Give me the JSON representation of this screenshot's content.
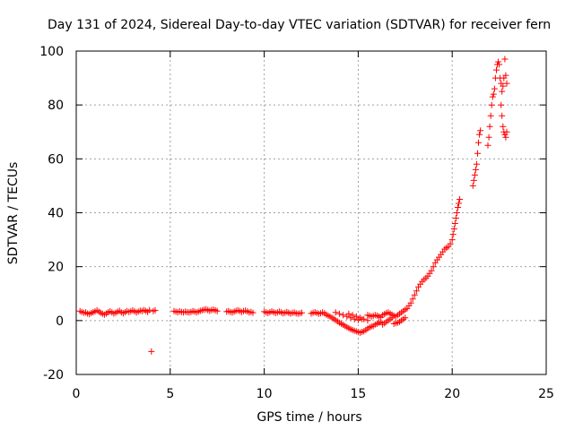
{
  "chart_data": {
    "type": "scatter",
    "title": "Day 131 of 2024, Sidereal Day-to-day VTEC variation (SDTVAR) for receiver fern",
    "xlabel": "GPS time / hours",
    "ylabel": "SDTVAR / TECUs",
    "xlim": [
      0,
      25
    ],
    "ylim": [
      -20,
      100
    ],
    "xticks": [
      0,
      5,
      10,
      15,
      20,
      25
    ],
    "yticks": [
      -20,
      0,
      20,
      40,
      60,
      80,
      100
    ],
    "grid": true,
    "marker": "+",
    "colors": {
      "series": "#ff0000",
      "axis": "#000000",
      "grid": "#a0a0a0"
    },
    "series": [
      {
        "name": "SDTVAR",
        "points": [
          [
            0.2,
            3.5
          ],
          [
            0.3,
            3.2
          ],
          [
            0.4,
            2.9
          ],
          [
            0.5,
            3.0
          ],
          [
            0.6,
            2.6
          ],
          [
            0.7,
            2.4
          ],
          [
            0.8,
            2.8
          ],
          [
            0.9,
            3.1
          ],
          [
            1.0,
            3.4
          ],
          [
            1.1,
            3.8
          ],
          [
            1.2,
            3.3
          ],
          [
            1.3,
            2.9
          ],
          [
            1.4,
            2.5
          ],
          [
            1.5,
            2.2
          ],
          [
            1.6,
            2.6
          ],
          [
            1.7,
            3.1
          ],
          [
            1.8,
            3.4
          ],
          [
            1.9,
            3.0
          ],
          [
            2.0,
            2.6
          ],
          [
            2.1,
            2.9
          ],
          [
            2.2,
            3.3
          ],
          [
            2.3,
            3.6
          ],
          [
            2.4,
            3.0
          ],
          [
            2.5,
            2.7
          ],
          [
            2.6,
            3.1
          ],
          [
            2.7,
            3.5
          ],
          [
            2.8,
            3.2
          ],
          [
            2.9,
            3.4
          ],
          [
            3.0,
            3.8
          ],
          [
            3.1,
            3.4
          ],
          [
            3.2,
            3.0
          ],
          [
            3.3,
            3.3
          ],
          [
            3.4,
            3.7
          ],
          [
            3.5,
            3.5
          ],
          [
            3.6,
            3.9
          ],
          [
            3.7,
            3.6
          ],
          [
            3.8,
            3.2
          ],
          [
            3.9,
            3.9
          ],
          [
            4.0,
            -11.5
          ],
          [
            4.1,
            3.5
          ],
          [
            4.2,
            3.8
          ],
          [
            5.2,
            3.5
          ],
          [
            5.3,
            3.3
          ],
          [
            5.4,
            3.1
          ],
          [
            5.5,
            3.4
          ],
          [
            5.6,
            3.2
          ],
          [
            5.7,
            3.0
          ],
          [
            5.8,
            3.3
          ],
          [
            5.9,
            3.1
          ],
          [
            6.0,
            3.0
          ],
          [
            6.1,
            3.2
          ],
          [
            6.2,
            3.5
          ],
          [
            6.3,
            3.3
          ],
          [
            6.4,
            3.0
          ],
          [
            6.5,
            3.3
          ],
          [
            6.6,
            3.6
          ],
          [
            6.7,
            3.8
          ],
          [
            6.8,
            4.0
          ],
          [
            6.9,
            4.2
          ],
          [
            7.0,
            3.9
          ],
          [
            7.1,
            3.6
          ],
          [
            7.2,
            3.9
          ],
          [
            7.3,
            4.1
          ],
          [
            7.4,
            3.8
          ],
          [
            7.5,
            3.5
          ],
          [
            8.0,
            3.3
          ],
          [
            8.1,
            3.5
          ],
          [
            8.2,
            3.2
          ],
          [
            8.3,
            3.0
          ],
          [
            8.4,
            3.3
          ],
          [
            8.5,
            3.6
          ],
          [
            8.6,
            3.8
          ],
          [
            8.7,
            3.5
          ],
          [
            8.8,
            3.2
          ],
          [
            8.9,
            3.5
          ],
          [
            9.0,
            3.7
          ],
          [
            9.1,
            3.4
          ],
          [
            9.2,
            3.0
          ],
          [
            9.3,
            3.2
          ],
          [
            9.4,
            2.9
          ],
          [
            10.0,
            3.3
          ],
          [
            10.1,
            3.0
          ],
          [
            10.2,
            2.8
          ],
          [
            10.3,
            3.1
          ],
          [
            10.4,
            3.4
          ],
          [
            10.5,
            3.1
          ],
          [
            10.6,
            2.8
          ],
          [
            10.7,
            3.0
          ],
          [
            10.8,
            3.3
          ],
          [
            10.9,
            3.0
          ],
          [
            11.0,
            2.7
          ],
          [
            11.1,
            2.9
          ],
          [
            11.2,
            3.2
          ],
          [
            11.3,
            2.9
          ],
          [
            11.4,
            2.6
          ],
          [
            11.5,
            2.8
          ],
          [
            11.6,
            3.0
          ],
          [
            11.7,
            2.7
          ],
          [
            11.8,
            2.5
          ],
          [
            11.9,
            2.7
          ],
          [
            12.0,
            2.9
          ],
          [
            12.5,
            2.6
          ],
          [
            12.6,
            2.9
          ],
          [
            12.7,
            3.1
          ],
          [
            12.8,
            2.8
          ],
          [
            12.9,
            2.5
          ],
          [
            13.0,
            2.7
          ],
          [
            13.1,
            3.0
          ],
          [
            13.2,
            2.7
          ],
          [
            13.3,
            2.2
          ],
          [
            13.4,
            1.8
          ],
          [
            13.5,
            1.5
          ],
          [
            13.6,
            1.0
          ],
          [
            13.7,
            0.6
          ],
          [
            13.8,
            0.2
          ],
          [
            13.9,
            -0.3
          ],
          [
            14.0,
            -0.8
          ],
          [
            14.1,
            -1.2
          ],
          [
            14.2,
            -1.6
          ],
          [
            14.3,
            -2.0
          ],
          [
            14.4,
            -2.4
          ],
          [
            14.5,
            -2.8
          ],
          [
            14.6,
            -3.2
          ],
          [
            14.7,
            -3.5
          ],
          [
            14.8,
            -3.8
          ],
          [
            14.9,
            -4.0
          ],
          [
            15.0,
            -4.3
          ],
          [
            15.1,
            -4.5
          ],
          [
            15.2,
            -4.2
          ],
          [
            15.3,
            -4.0
          ],
          [
            13.8,
            3.0
          ],
          [
            14.0,
            2.5
          ],
          [
            14.2,
            2.0
          ],
          [
            14.4,
            1.5
          ],
          [
            14.6,
            1.0
          ],
          [
            14.8,
            0.5
          ],
          [
            15.0,
            0.2
          ],
          [
            15.2,
            0.5
          ],
          [
            14.5,
            2.5
          ],
          [
            14.7,
            2.0
          ],
          [
            14.9,
            1.5
          ],
          [
            15.1,
            1.0
          ],
          [
            15.3,
            0.5
          ],
          [
            15.5,
            0.0
          ],
          [
            15.4,
            -3.5
          ],
          [
            15.5,
            -3.0
          ],
          [
            15.6,
            -2.5
          ],
          [
            15.7,
            -2.2
          ],
          [
            15.8,
            -2.0
          ],
          [
            15.9,
            -1.5
          ],
          [
            16.0,
            -1.2
          ],
          [
            15.5,
            2.0
          ],
          [
            15.6,
            1.8
          ],
          [
            15.7,
            1.5
          ],
          [
            15.8,
            1.7
          ],
          [
            15.9,
            2.0
          ],
          [
            16.0,
            1.8
          ],
          [
            16.1,
            1.5
          ],
          [
            16.2,
            1.2
          ],
          [
            16.1,
            -0.8
          ],
          [
            16.2,
            -0.5
          ],
          [
            16.3,
            -1.5
          ],
          [
            16.4,
            -1.0
          ],
          [
            16.5,
            -0.5
          ],
          [
            16.6,
            0.0
          ],
          [
            16.7,
            0.5
          ],
          [
            16.8,
            1.0
          ],
          [
            16.3,
            2.0
          ],
          [
            16.4,
            2.4
          ],
          [
            16.5,
            2.8
          ],
          [
            16.6,
            3.0
          ],
          [
            16.7,
            2.6
          ],
          [
            16.8,
            2.2
          ],
          [
            16.9,
            1.8
          ],
          [
            17.0,
            1.5
          ],
          [
            16.9,
            -1.2
          ],
          [
            17.0,
            -1.0
          ],
          [
            17.1,
            -0.8
          ],
          [
            17.2,
            -0.5
          ],
          [
            17.3,
            0.0
          ],
          [
            17.4,
            0.5
          ],
          [
            17.5,
            1.0
          ],
          [
            17.1,
            2.0
          ],
          [
            17.2,
            2.5
          ],
          [
            17.3,
            3.0
          ],
          [
            17.4,
            3.5
          ],
          [
            17.5,
            4.0
          ],
          [
            17.6,
            4.5
          ],
          [
            17.7,
            5.5
          ],
          [
            17.8,
            6.5
          ],
          [
            17.9,
            8.0
          ],
          [
            18.0,
            9.5
          ],
          [
            18.1,
            11.0
          ],
          [
            18.2,
            12.5
          ],
          [
            18.3,
            13.5
          ],
          [
            18.4,
            14.5
          ],
          [
            18.5,
            15.2
          ],
          [
            18.6,
            15.8
          ],
          [
            18.7,
            16.5
          ],
          [
            18.8,
            17.5
          ],
          [
            18.9,
            18.5
          ],
          [
            19.0,
            20.0
          ],
          [
            19.1,
            21.5
          ],
          [
            19.2,
            22.5
          ],
          [
            19.3,
            23.5
          ],
          [
            19.4,
            24.5
          ],
          [
            19.5,
            25.5
          ],
          [
            19.6,
            26.5
          ],
          [
            19.7,
            27.0
          ],
          [
            19.8,
            27.5
          ],
          [
            19.9,
            28.5
          ],
          [
            20.0,
            30.0
          ],
          [
            20.05,
            32.0
          ],
          [
            20.1,
            34.0
          ],
          [
            20.15,
            36.0
          ],
          [
            20.2,
            38.0
          ],
          [
            20.25,
            40.0
          ],
          [
            20.3,
            42.0
          ],
          [
            20.35,
            43.5
          ],
          [
            20.4,
            45.0
          ],
          [
            21.1,
            50.0
          ],
          [
            21.15,
            52.0
          ],
          [
            21.2,
            54.0
          ],
          [
            21.25,
            56.0
          ],
          [
            21.3,
            58.0
          ],
          [
            21.35,
            62.0
          ],
          [
            21.4,
            66.0
          ],
          [
            21.45,
            69.0
          ],
          [
            21.5,
            70.5
          ],
          [
            21.9,
            65.0
          ],
          [
            21.95,
            68.0
          ],
          [
            22.0,
            72.0
          ],
          [
            22.05,
            76.0
          ],
          [
            22.1,
            80.0
          ],
          [
            22.15,
            83.0
          ],
          [
            22.2,
            84.0
          ],
          [
            22.25,
            86.0
          ],
          [
            22.3,
            90.0
          ],
          [
            22.35,
            93.0
          ],
          [
            22.4,
            95.0
          ],
          [
            22.45,
            96.0
          ],
          [
            22.5,
            95.0
          ],
          [
            22.55,
            90.0
          ],
          [
            22.6,
            88.0
          ],
          [
            22.65,
            85.0
          ],
          [
            22.7,
            87.0
          ],
          [
            22.75,
            90.0
          ],
          [
            22.8,
            97.0
          ],
          [
            22.85,
            91.0
          ],
          [
            22.9,
            88.0
          ],
          [
            22.6,
            80.0
          ],
          [
            22.65,
            76.0
          ],
          [
            22.7,
            72.0
          ],
          [
            22.75,
            70.0
          ],
          [
            22.8,
            69.0
          ],
          [
            22.85,
            68.0
          ],
          [
            22.9,
            70.0
          ]
        ]
      }
    ]
  }
}
